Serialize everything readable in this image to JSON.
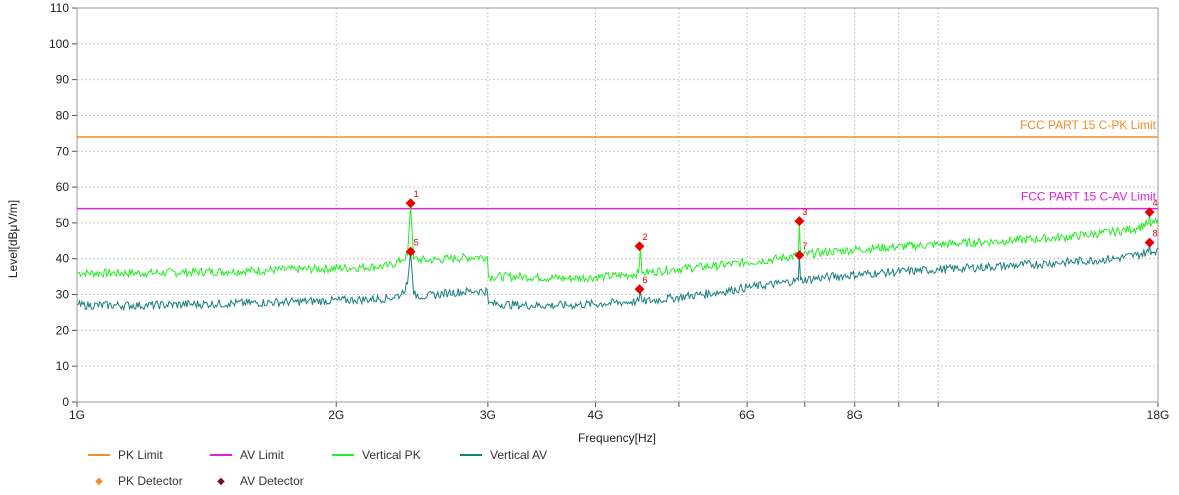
{
  "chart_data": {
    "type": "line",
    "xlabel": "Frequency[Hz]",
    "ylabel": "Level[dBμV/m]",
    "x_scale": "log",
    "xlim": [
      1000000000,
      18000000000
    ],
    "ylim": [
      0,
      110
    ],
    "grid": true,
    "x_ticks": [
      {
        "value": 1000000000,
        "label": "1G"
      },
      {
        "value": 2000000000,
        "label": "2G"
      },
      {
        "value": 3000000000,
        "label": "3G"
      },
      {
        "value": 4000000000,
        "label": "4G"
      },
      {
        "value": 5000000000,
        "label": ""
      },
      {
        "value": 6000000000,
        "label": "6G"
      },
      {
        "value": 7000000000,
        "label": ""
      },
      {
        "value": 8000000000,
        "label": "8G"
      },
      {
        "value": 9000000000,
        "label": ""
      },
      {
        "value": 10000000000,
        "label": ""
      },
      {
        "value": 18000000000,
        "label": "18G"
      }
    ],
    "y_ticks": [
      "0",
      "10",
      "20",
      "30",
      "40",
      "50",
      "60",
      "70",
      "80",
      "90",
      "100",
      "110"
    ],
    "limits": [
      {
        "name": "PK Limit",
        "value": 74,
        "label": "FCC PART 15 C-PK Limit",
        "color": "#f28c28"
      },
      {
        "name": "AV Limit",
        "value": 54,
        "label": "FCC PART 15 C-AV Limit",
        "color": "#e020e0"
      }
    ],
    "series": [
      {
        "name": "Vertical PK",
        "color": "#22ee22",
        "points": [
          [
            1000000000,
            36
          ],
          [
            1200000000,
            36
          ],
          [
            1500000000,
            36.5
          ],
          [
            1800000000,
            37
          ],
          [
            2100000000,
            37.5
          ],
          [
            2300000000,
            38
          ],
          [
            2380000000,
            39.5
          ],
          [
            2420000000,
            41
          ],
          [
            2440000000,
            55
          ],
          [
            2460000000,
            40
          ],
          [
            2550000000,
            39.5
          ],
          [
            2700000000,
            40
          ],
          [
            2900000000,
            40.5
          ],
          [
            2995000000,
            40.5
          ],
          [
            3005000000,
            35
          ],
          [
            3300000000,
            35
          ],
          [
            3700000000,
            34.5
          ],
          [
            4100000000,
            35
          ],
          [
            4400000000,
            35.5
          ],
          [
            4490000000,
            36
          ],
          [
            4510000000,
            43
          ],
          [
            4530000000,
            36
          ],
          [
            4900000000,
            37
          ],
          [
            5500000000,
            38
          ],
          [
            6000000000,
            39
          ],
          [
            6500000000,
            40
          ],
          [
            6880000000,
            41
          ],
          [
            6900000000,
            50
          ],
          [
            6920000000,
            41
          ],
          [
            7500000000,
            42
          ],
          [
            8500000000,
            43
          ],
          [
            10000000000,
            44
          ],
          [
            12000000000,
            45
          ],
          [
            14000000000,
            46
          ],
          [
            16000000000,
            47.5
          ],
          [
            17000000000,
            48.5
          ],
          [
            17550000000,
            50
          ],
          [
            17600000000,
            53
          ],
          [
            17650000000,
            49
          ],
          [
            18000000000,
            51
          ]
        ]
      },
      {
        "name": "Vertical AV",
        "color": "#1b7f82",
        "points": [
          [
            1000000000,
            27
          ],
          [
            1200000000,
            27
          ],
          [
            1500000000,
            27.5
          ],
          [
            1800000000,
            28
          ],
          [
            2100000000,
            28.5
          ],
          [
            2300000000,
            29
          ],
          [
            2380000000,
            30
          ],
          [
            2420000000,
            33
          ],
          [
            2440000000,
            42
          ],
          [
            2460000000,
            30
          ],
          [
            2550000000,
            29.5
          ],
          [
            2700000000,
            30.5
          ],
          [
            2900000000,
            31
          ],
          [
            2995000000,
            31
          ],
          [
            3005000000,
            27.5
          ],
          [
            3300000000,
            27
          ],
          [
            3700000000,
            27
          ],
          [
            4100000000,
            27.5
          ],
          [
            4400000000,
            28
          ],
          [
            4490000000,
            28
          ],
          [
            4510000000,
            31
          ],
          [
            4530000000,
            28
          ],
          [
            4900000000,
            29
          ],
          [
            5500000000,
            30.5
          ],
          [
            6000000000,
            32
          ],
          [
            6500000000,
            33
          ],
          [
            6880000000,
            34
          ],
          [
            6900000000,
            41
          ],
          [
            6920000000,
            34
          ],
          [
            7500000000,
            35
          ],
          [
            8500000000,
            36
          ],
          [
            10000000000,
            37
          ],
          [
            12000000000,
            38
          ],
          [
            14000000000,
            39
          ],
          [
            16000000000,
            40
          ],
          [
            17000000000,
            41
          ],
          [
            17550000000,
            42
          ],
          [
            17600000000,
            44
          ],
          [
            17650000000,
            41
          ],
          [
            18000000000,
            43
          ]
        ]
      }
    ],
    "markers": [
      {
        "label": "1",
        "x": 2440000000,
        "y": 55.5
      },
      {
        "label": "2",
        "x": 4500000000,
        "y": 43.5
      },
      {
        "label": "3",
        "x": 6900000000,
        "y": 50.5
      },
      {
        "label": "4",
        "x": 17600000000,
        "y": 53
      },
      {
        "label": "5",
        "x": 2440000000,
        "y": 42
      },
      {
        "label": "6",
        "x": 4500000000,
        "y": 31.5
      },
      {
        "label": "7",
        "x": 6900000000,
        "y": 41
      },
      {
        "label": "8",
        "x": 17600000000,
        "y": 44.5
      }
    ],
    "legend": [
      {
        "label": "PK Limit",
        "kind": "line",
        "color": "#f28c28"
      },
      {
        "label": "AV Limit",
        "kind": "line",
        "color": "#e020e0"
      },
      {
        "label": "Vertical PK",
        "kind": "line",
        "color": "#22ee22"
      },
      {
        "label": "Vertical AV",
        "kind": "line",
        "color": "#1b7f82"
      },
      {
        "label": "PK Detector",
        "kind": "dot",
        "color": "#f28c28"
      },
      {
        "label": "AV Detector",
        "kind": "dot",
        "color": "#6b0f3d"
      }
    ],
    "legend_placement": "bottom-left"
  }
}
